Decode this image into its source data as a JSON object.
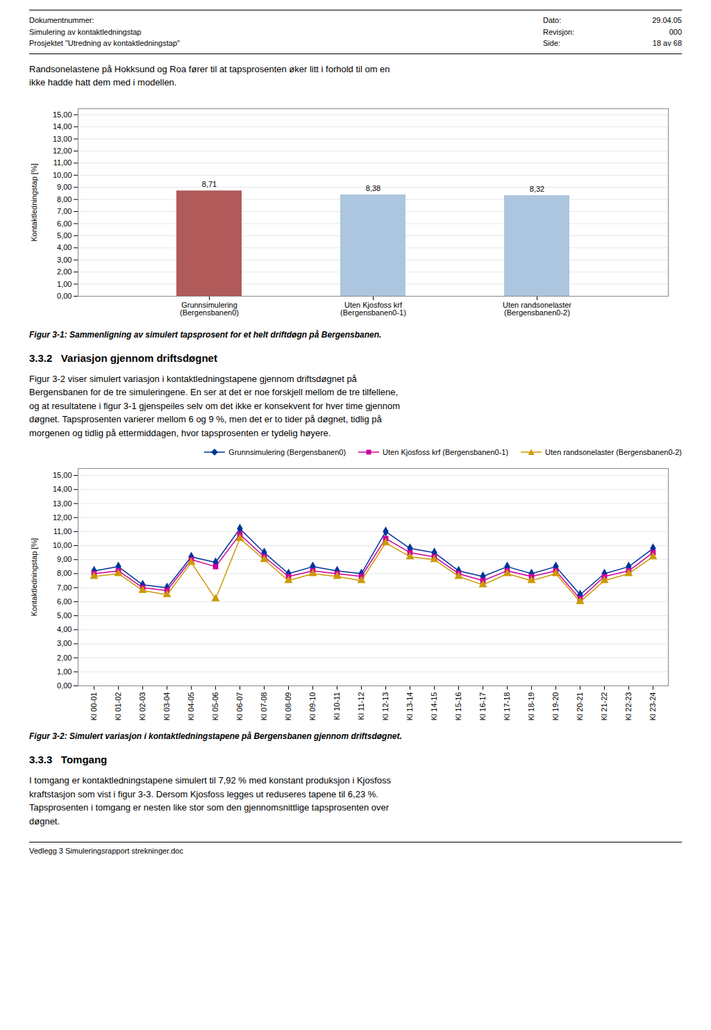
{
  "header": {
    "left_lines": [
      "Dokumentnummer:",
      "Simulering av kontaktledningstap",
      "Prosjektet \"Utredning av kontaktledningstap\""
    ],
    "right_labels": [
      "Dato:",
      "Revisjon:",
      "Side:"
    ],
    "right_values": [
      "29.04.05",
      "000",
      "18 av 68"
    ]
  },
  "intro_text": "Randsonelastene på Hokksund og Roa fører til at tapsprosenten øker litt i forhold til om en\nikke hadde hatt dem med i modellen.",
  "section_title": "3.3.2   Variasjon gjennom driftsdøgnet",
  "section_text": "Figur 3-2 viser simulert variasjon i kontaktledningstapene gjennom driftsdøgnet på\nBergensbanen for de tre simuleringene. En ser at det er noe forskjell mellom de tre tilfellene,\nog at resultatene i figur 3-1 gjenspeiles selv om det ikke er konsekvent for hver time gjennom\ndøgnet. Tapsprosenten varierer mellom 6 og 9 %, men det er to tider på døgnet, tidlig på\nmorgenen og tidlig på ettermiddagen, hvor tapsprosenten er tydelig høyere.",
  "section2_title": "3.3.3   Tomgang",
  "section2_text": "I tomgang er kontaktledningstapene simulert til 7,92 % med konstant produksjon i Kjosfoss\nkraftstasjon som vist i figur 3-3. Dersom Kjosfoss legges ut reduseres tapene til 6,23 %.\nTapsprosenten i tomgang er nesten like stor som den gjennomsnittlige tapsprosenten over\ndøgnet.",
  "footer_text": "Vedlegg 3 Simuleringsrapport strekninger.doc",
  "chart_data": [
    {
      "type": "bar",
      "title": "Figur 3-1: Sammenligning av simulert tapsprosent for et helt driftdøgn på Bergensbanen.",
      "categories": [
        "Grunnsimulering\n(Bergensbanen0)",
        "Uten Kjosfoss krf\n(Bergensbanen0-1)",
        "Uten randsonelaster\n(Bergensbanen0-2)"
      ],
      "values": [
        8.71,
        8.38,
        8.32
      ],
      "value_labels": [
        "8,71",
        "8,38",
        "8,32"
      ],
      "colors": [
        "#b05a5a",
        "#adc6e0",
        "#adc6e0"
      ],
      "ylabel": "Kontaktledningstap [%]",
      "ylim": [
        0,
        15.5
      ],
      "yticks": [
        {
          "value": 0,
          "label": "0,00"
        },
        {
          "value": 1,
          "label": "1,00"
        },
        {
          "value": 2,
          "label": "2,00"
        },
        {
          "value": 3,
          "label": "3,00"
        },
        {
          "value": 4,
          "label": "4,00"
        },
        {
          "value": 5,
          "label": "5,00"
        },
        {
          "value": 6,
          "label": "6,00"
        },
        {
          "value": 7,
          "label": "7,00"
        },
        {
          "value": 8,
          "label": "8,00"
        },
        {
          "value": 9,
          "label": "9,00"
        },
        {
          "value": 10,
          "label": "10,00"
        },
        {
          "value": 11,
          "label": "11,00"
        },
        {
          "value": 12,
          "label": "12,00"
        },
        {
          "value": 13,
          "label": "13,00"
        },
        {
          "value": 14,
          "label": "14,00"
        },
        {
          "value": 15,
          "label": "15,00"
        }
      ],
      "grid": true,
      "data_labels": true
    },
    {
      "type": "line",
      "title": "Figur 3-2: Simulert variasjon i kontaktledningstapene på Bergensbanen gjennom driftsdøgnet.",
      "categories": [
        "Kl 00-01",
        "Kl 01-02",
        "Kl 02-03",
        "Kl 03-04",
        "Kl 04-05",
        "Kl 05-06",
        "Kl 06-07",
        "Kl 07-08",
        "Kl 08-09",
        "Kl 09-10",
        "Kl 10-11",
        "Kl 11-12",
        "Kl 12-13",
        "Kl 13-14",
        "Kl 14-15",
        "Kl 15-16",
        "Kl 16-17",
        "Kl 17-18",
        "Kl 18-19",
        "Kl 19-20",
        "Kl 20-21",
        "Kl 21-22",
        "Kl 22-23",
        "Kl 23-24"
      ],
      "series": [
        {
          "name": "Grunnsimulering (Bergensbanen0)",
          "color": "#003399",
          "marker": "diamond",
          "values": [
            8.2,
            8.5,
            7.2,
            7.0,
            9.2,
            8.8,
            11.2,
            9.5,
            8.0,
            8.5,
            8.2,
            8.0,
            11.0,
            9.8,
            9.5,
            8.2,
            7.8,
            8.5,
            8.0,
            8.5,
            6.5,
            8.0,
            8.5,
            9.8
          ]
        },
        {
          "name": "Uten Kjosfoss krf (Bergensbanen0-1)",
          "color": "#cc0099",
          "marker": "square",
          "values": [
            8.0,
            8.2,
            7.0,
            6.8,
            9.0,
            8.5,
            10.8,
            9.2,
            7.8,
            8.2,
            8.0,
            7.8,
            10.5,
            9.5,
            9.2,
            8.0,
            7.5,
            8.2,
            7.8,
            8.2,
            6.2,
            7.8,
            8.2,
            9.5
          ]
        },
        {
          "name": "Uten randsonelaster (Bergensbanen0-2)",
          "color": "#cc9900",
          "marker": "triangle",
          "values": [
            7.8,
            8.0,
            6.8,
            6.5,
            8.8,
            6.2,
            10.5,
            9.0,
            7.5,
            8.0,
            7.8,
            7.5,
            10.2,
            9.2,
            9.0,
            7.8,
            7.2,
            8.0,
            7.5,
            8.0,
            6.0,
            7.5,
            8.0,
            9.2
          ]
        }
      ],
      "ylabel": "Kontaktledningstap [%]",
      "ylim": [
        0,
        15.5
      ],
      "yticks": [
        {
          "value": 0,
          "label": "0,00"
        },
        {
          "value": 1,
          "label": "1,00"
        },
        {
          "value": 2,
          "label": "2,00"
        },
        {
          "value": 3,
          "label": "3,00"
        },
        {
          "value": 4,
          "label": "4,00"
        },
        {
          "value": 5,
          "label": "5,00"
        },
        {
          "value": 6,
          "label": "6,00"
        },
        {
          "value": 7,
          "label": "7,00"
        },
        {
          "value": 8,
          "label": "8,00"
        },
        {
          "value": 9,
          "label": "9,00"
        },
        {
          "value": 10,
          "label": "10,00"
        },
        {
          "value": 11,
          "label": "11,00"
        },
        {
          "value": 12,
          "label": "12,00"
        },
        {
          "value": 13,
          "label": "13,00"
        },
        {
          "value": 14,
          "label": "14,00"
        },
        {
          "value": 15,
          "label": "15,00"
        }
      ],
      "grid": true,
      "legend": "upper right"
    }
  ]
}
